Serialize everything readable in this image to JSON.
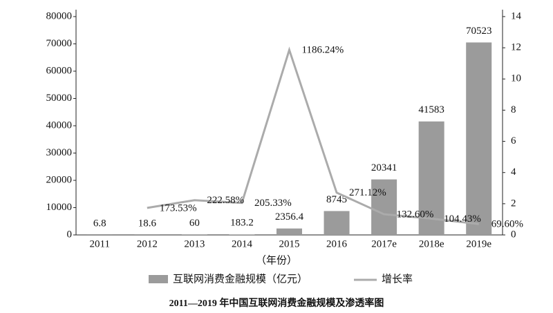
{
  "chart_data": {
    "type": "bar",
    "title": "2011—2019 年中国互联网消费金融规模及渗透率图",
    "x_label": "（年份）",
    "categories": [
      "2011",
      "2012",
      "2013",
      "2014",
      "2015",
      "2016",
      "2017e",
      "2018e",
      "2019e"
    ],
    "series": [
      {
        "name": "互联网消费金融规模（亿元）",
        "type": "bar",
        "color": "#9b9b9b",
        "values": [
          6.8,
          18.6,
          60,
          183.2,
          2356.4,
          8745,
          20341,
          41583,
          70523
        ]
      },
      {
        "name": "增长率",
        "type": "line",
        "axis": "y2",
        "color": "#ababab",
        "values": [
          null,
          1.7353,
          2.2258,
          2.0533,
          11.8624,
          2.7112,
          1.326,
          1.0443,
          0.696
        ],
        "value_labels": [
          null,
          "173.53%",
          "222.58%",
          "205.33%",
          "1186.24%",
          "271.12%",
          "132.60%",
          "104.43%",
          "69.60%"
        ]
      }
    ],
    "ylim": [
      0,
      80000
    ],
    "yticks": [
      0,
      10000,
      20000,
      30000,
      40000,
      50000,
      60000,
      70000,
      80000
    ],
    "y2lim": [
      0,
      14
    ],
    "y2ticks": [
      0,
      2,
      4,
      6,
      8,
      10,
      12,
      14
    ],
    "grid": false
  }
}
